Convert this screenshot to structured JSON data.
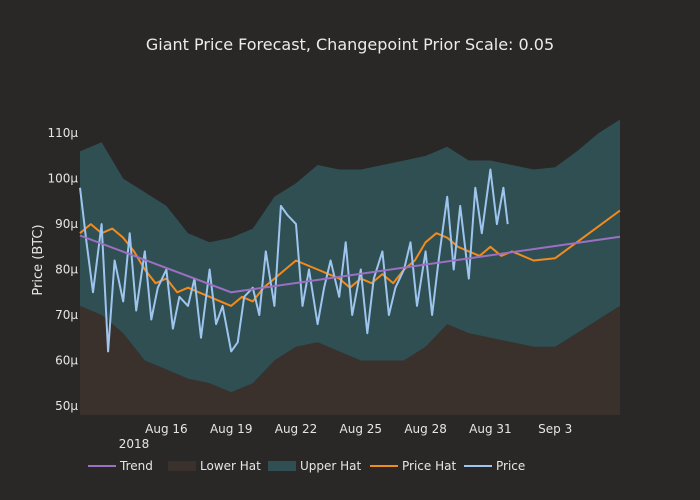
{
  "chart_data": {
    "type": "line",
    "title": "Giant Price Forecast, Changepoint Prior Scale: 0.05",
    "ylabel": "Price (BTC)",
    "ylim": [
      48,
      114
    ],
    "xlim": [
      "2018-08-12",
      "2018-09-06"
    ],
    "yticks": [
      50,
      60,
      70,
      80,
      90,
      100,
      110
    ],
    "ytick_labels": [
      "50μ",
      "60μ",
      "70μ",
      "80μ",
      "90μ",
      "100μ",
      "110μ"
    ],
    "xticks": [
      "2018-08-16",
      "2018-08-19",
      "2018-08-22",
      "2018-08-25",
      "2018-08-28",
      "2018-08-31",
      "2018-09-03"
    ],
    "xtick_labels": [
      "Aug 16",
      "Aug 19",
      "Aug 22",
      "Aug 25",
      "Aug 28",
      "Aug 31",
      "Sep 3"
    ],
    "xtick_sublabel": "2018",
    "legend": {
      "position": "bottom",
      "entries": [
        "Trend",
        "Lower Hat",
        "Upper Hat",
        "Price Hat",
        "Price"
      ]
    },
    "colors": {
      "background": "#2a2727",
      "trend": "#9b6fc2",
      "lower_hat_fill": "#3a302c",
      "upper_hat_fill": "#2f4f53",
      "price_hat": "#f28a1c",
      "price": "#9ec5ee"
    },
    "series": [
      {
        "name": "Trend",
        "x": [
          "2018-08-12",
          "2018-08-19",
          "2018-09-06"
        ],
        "y": [
          87.5,
          75.0,
          87.2
        ]
      },
      {
        "name": "Upper Hat",
        "x": [
          "2018-08-12",
          "2018-08-13",
          "2018-08-14",
          "2018-08-15",
          "2018-08-16",
          "2018-08-17",
          "2018-08-18",
          "2018-08-19",
          "2018-08-20",
          "2018-08-21",
          "2018-08-22",
          "2018-08-23",
          "2018-08-24",
          "2018-08-25",
          "2018-08-26",
          "2018-08-27",
          "2018-08-28",
          "2018-08-29",
          "2018-08-30",
          "2018-08-31",
          "2018-09-01",
          "2018-09-02",
          "2018-09-03",
          "2018-09-04",
          "2018-09-05",
          "2018-09-06"
        ],
        "y": [
          106,
          108,
          100,
          97,
          94,
          88,
          86,
          87,
          89,
          96,
          99,
          103,
          102,
          102,
          103,
          104,
          105,
          107,
          104,
          104,
          103,
          102,
          102.5,
          106,
          110,
          113
        ]
      },
      {
        "name": "Lower Hat",
        "x": [
          "2018-08-12",
          "2018-08-13",
          "2018-08-14",
          "2018-08-15",
          "2018-08-16",
          "2018-08-17",
          "2018-08-18",
          "2018-08-19",
          "2018-08-20",
          "2018-08-21",
          "2018-08-22",
          "2018-08-23",
          "2018-08-24",
          "2018-08-25",
          "2018-08-26",
          "2018-08-27",
          "2018-08-28",
          "2018-08-29",
          "2018-08-30",
          "2018-08-31",
          "2018-09-01",
          "2018-09-02",
          "2018-09-03",
          "2018-09-04",
          "2018-09-05",
          "2018-09-06"
        ],
        "y": [
          72,
          70,
          66,
          60,
          58,
          56,
          55,
          53,
          55,
          60,
          63,
          64,
          62,
          60,
          60,
          60,
          63,
          68,
          66,
          65,
          64,
          63,
          63,
          66,
          69,
          72
        ]
      },
      {
        "name": "Price Hat",
        "x": [
          "2018-08-12",
          "2018-08-12.5",
          "2018-08-13",
          "2018-08-13.5",
          "2018-08-14",
          "2018-08-14.5",
          "2018-08-15",
          "2018-08-15.5",
          "2018-08-16",
          "2018-08-16.5",
          "2018-08-17",
          "2018-08-17.5",
          "2018-08-18",
          "2018-08-18.5",
          "2018-08-19",
          "2018-08-19.5",
          "2018-08-20",
          "2018-08-20.5",
          "2018-08-21",
          "2018-08-21.5",
          "2018-08-22",
          "2018-08-22.5",
          "2018-08-23",
          "2018-08-23.5",
          "2018-08-24",
          "2018-08-24.5",
          "2018-08-25",
          "2018-08-25.5",
          "2018-08-26",
          "2018-08-26.5",
          "2018-08-27",
          "2018-08-27.5",
          "2018-08-28",
          "2018-08-28.5",
          "2018-08-29",
          "2018-08-29.5",
          "2018-08-30",
          "2018-08-30.5",
          "2018-08-31",
          "2018-08-31.5",
          "2018-09-01",
          "2018-09-02",
          "2018-09-03",
          "2018-09-04",
          "2018-09-05",
          "2018-09-06"
        ],
        "y": [
          88,
          90,
          88,
          89,
          87,
          84,
          80,
          77,
          78,
          75,
          76,
          75,
          74,
          73,
          72,
          74,
          73,
          76,
          78,
          80,
          82,
          81,
          80,
          79,
          78,
          76,
          78,
          77,
          79,
          77,
          80,
          82,
          86,
          88,
          87,
          85,
          84,
          83,
          85,
          83,
          84,
          82,
          82.5,
          86,
          89.5,
          93
        ]
      },
      {
        "name": "Price",
        "x": [
          "2018-08-12",
          "2018-08-12.3",
          "2018-08-12.6",
          "2018-08-13",
          "2018-08-13.3",
          "2018-08-13.6",
          "2018-08-14",
          "2018-08-14.3",
          "2018-08-14.6",
          "2018-08-15",
          "2018-08-15.3",
          "2018-08-15.6",
          "2018-08-16",
          "2018-08-16.3",
          "2018-08-16.6",
          "2018-08-17",
          "2018-08-17.3",
          "2018-08-17.6",
          "2018-08-18",
          "2018-08-18.3",
          "2018-08-18.6",
          "2018-08-19",
          "2018-08-19.3",
          "2018-08-19.6",
          "2018-08-20",
          "2018-08-20.3",
          "2018-08-20.6",
          "2018-08-21",
          "2018-08-21.3",
          "2018-08-21.6",
          "2018-08-22",
          "2018-08-22.3",
          "2018-08-22.6",
          "2018-08-23",
          "2018-08-23.3",
          "2018-08-23.6",
          "2018-08-24",
          "2018-08-24.3",
          "2018-08-24.6",
          "2018-08-25",
          "2018-08-25.3",
          "2018-08-25.6",
          "2018-08-26",
          "2018-08-26.3",
          "2018-08-26.6",
          "2018-08-27",
          "2018-08-27.3",
          "2018-08-27.6",
          "2018-08-28",
          "2018-08-28.3",
          "2018-08-28.6",
          "2018-08-29",
          "2018-08-29.3",
          "2018-08-29.6",
          "2018-08-30",
          "2018-08-30.3",
          "2018-08-30.6",
          "2018-08-31",
          "2018-08-31.3",
          "2018-08-31.6",
          "2018-08-31.8"
        ],
        "y": [
          98,
          86,
          75,
          90,
          62,
          82,
          73,
          88,
          71,
          84,
          69,
          76,
          80,
          67,
          74,
          72,
          78,
          65,
          80,
          68,
          72,
          62,
          64,
          74,
          76,
          70,
          84,
          72,
          94,
          92,
          90,
          72,
          80,
          68,
          76,
          82,
          74,
          86,
          70,
          80,
          66,
          78,
          84,
          70,
          76,
          80,
          86,
          72,
          84,
          70,
          82,
          96,
          80,
          94,
          78,
          98,
          88,
          102,
          90,
          98,
          90
        ]
      }
    ]
  }
}
